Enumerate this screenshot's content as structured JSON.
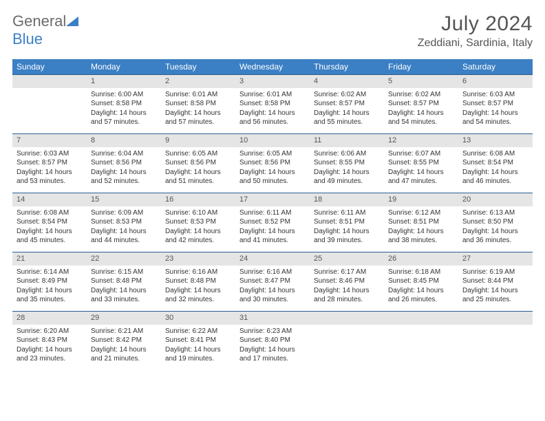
{
  "logo": {
    "line1": "General",
    "line2": "Blue",
    "icon_color": "#3b7fc4"
  },
  "title": "July 2024",
  "location": "Zeddiani, Sardinia, Italy",
  "colors": {
    "header_bg": "#3b7fc4",
    "header_text": "#ffffff",
    "daynum_bg": "#e5e5e5",
    "daynum_border": "#2b5d90",
    "body_text": "#333333"
  },
  "weekdays": [
    "Sunday",
    "Monday",
    "Tuesday",
    "Wednesday",
    "Thursday",
    "Friday",
    "Saturday"
  ],
  "weeks": [
    [
      {
        "n": "",
        "sunrise": "",
        "sunset": "",
        "daylight": ""
      },
      {
        "n": "1",
        "sunrise": "Sunrise: 6:00 AM",
        "sunset": "Sunset: 8:58 PM",
        "daylight": "Daylight: 14 hours and 57 minutes."
      },
      {
        "n": "2",
        "sunrise": "Sunrise: 6:01 AM",
        "sunset": "Sunset: 8:58 PM",
        "daylight": "Daylight: 14 hours and 57 minutes."
      },
      {
        "n": "3",
        "sunrise": "Sunrise: 6:01 AM",
        "sunset": "Sunset: 8:58 PM",
        "daylight": "Daylight: 14 hours and 56 minutes."
      },
      {
        "n": "4",
        "sunrise": "Sunrise: 6:02 AM",
        "sunset": "Sunset: 8:57 PM",
        "daylight": "Daylight: 14 hours and 55 minutes."
      },
      {
        "n": "5",
        "sunrise": "Sunrise: 6:02 AM",
        "sunset": "Sunset: 8:57 PM",
        "daylight": "Daylight: 14 hours and 54 minutes."
      },
      {
        "n": "6",
        "sunrise": "Sunrise: 6:03 AM",
        "sunset": "Sunset: 8:57 PM",
        "daylight": "Daylight: 14 hours and 54 minutes."
      }
    ],
    [
      {
        "n": "7",
        "sunrise": "Sunrise: 6:03 AM",
        "sunset": "Sunset: 8:57 PM",
        "daylight": "Daylight: 14 hours and 53 minutes."
      },
      {
        "n": "8",
        "sunrise": "Sunrise: 6:04 AM",
        "sunset": "Sunset: 8:56 PM",
        "daylight": "Daylight: 14 hours and 52 minutes."
      },
      {
        "n": "9",
        "sunrise": "Sunrise: 6:05 AM",
        "sunset": "Sunset: 8:56 PM",
        "daylight": "Daylight: 14 hours and 51 minutes."
      },
      {
        "n": "10",
        "sunrise": "Sunrise: 6:05 AM",
        "sunset": "Sunset: 8:56 PM",
        "daylight": "Daylight: 14 hours and 50 minutes."
      },
      {
        "n": "11",
        "sunrise": "Sunrise: 6:06 AM",
        "sunset": "Sunset: 8:55 PM",
        "daylight": "Daylight: 14 hours and 49 minutes."
      },
      {
        "n": "12",
        "sunrise": "Sunrise: 6:07 AM",
        "sunset": "Sunset: 8:55 PM",
        "daylight": "Daylight: 14 hours and 47 minutes."
      },
      {
        "n": "13",
        "sunrise": "Sunrise: 6:08 AM",
        "sunset": "Sunset: 8:54 PM",
        "daylight": "Daylight: 14 hours and 46 minutes."
      }
    ],
    [
      {
        "n": "14",
        "sunrise": "Sunrise: 6:08 AM",
        "sunset": "Sunset: 8:54 PM",
        "daylight": "Daylight: 14 hours and 45 minutes."
      },
      {
        "n": "15",
        "sunrise": "Sunrise: 6:09 AM",
        "sunset": "Sunset: 8:53 PM",
        "daylight": "Daylight: 14 hours and 44 minutes."
      },
      {
        "n": "16",
        "sunrise": "Sunrise: 6:10 AM",
        "sunset": "Sunset: 8:53 PM",
        "daylight": "Daylight: 14 hours and 42 minutes."
      },
      {
        "n": "17",
        "sunrise": "Sunrise: 6:11 AM",
        "sunset": "Sunset: 8:52 PM",
        "daylight": "Daylight: 14 hours and 41 minutes."
      },
      {
        "n": "18",
        "sunrise": "Sunrise: 6:11 AM",
        "sunset": "Sunset: 8:51 PM",
        "daylight": "Daylight: 14 hours and 39 minutes."
      },
      {
        "n": "19",
        "sunrise": "Sunrise: 6:12 AM",
        "sunset": "Sunset: 8:51 PM",
        "daylight": "Daylight: 14 hours and 38 minutes."
      },
      {
        "n": "20",
        "sunrise": "Sunrise: 6:13 AM",
        "sunset": "Sunset: 8:50 PM",
        "daylight": "Daylight: 14 hours and 36 minutes."
      }
    ],
    [
      {
        "n": "21",
        "sunrise": "Sunrise: 6:14 AM",
        "sunset": "Sunset: 8:49 PM",
        "daylight": "Daylight: 14 hours and 35 minutes."
      },
      {
        "n": "22",
        "sunrise": "Sunrise: 6:15 AM",
        "sunset": "Sunset: 8:48 PM",
        "daylight": "Daylight: 14 hours and 33 minutes."
      },
      {
        "n": "23",
        "sunrise": "Sunrise: 6:16 AM",
        "sunset": "Sunset: 8:48 PM",
        "daylight": "Daylight: 14 hours and 32 minutes."
      },
      {
        "n": "24",
        "sunrise": "Sunrise: 6:16 AM",
        "sunset": "Sunset: 8:47 PM",
        "daylight": "Daylight: 14 hours and 30 minutes."
      },
      {
        "n": "25",
        "sunrise": "Sunrise: 6:17 AM",
        "sunset": "Sunset: 8:46 PM",
        "daylight": "Daylight: 14 hours and 28 minutes."
      },
      {
        "n": "26",
        "sunrise": "Sunrise: 6:18 AM",
        "sunset": "Sunset: 8:45 PM",
        "daylight": "Daylight: 14 hours and 26 minutes."
      },
      {
        "n": "27",
        "sunrise": "Sunrise: 6:19 AM",
        "sunset": "Sunset: 8:44 PM",
        "daylight": "Daylight: 14 hours and 25 minutes."
      }
    ],
    [
      {
        "n": "28",
        "sunrise": "Sunrise: 6:20 AM",
        "sunset": "Sunset: 8:43 PM",
        "daylight": "Daylight: 14 hours and 23 minutes."
      },
      {
        "n": "29",
        "sunrise": "Sunrise: 6:21 AM",
        "sunset": "Sunset: 8:42 PM",
        "daylight": "Daylight: 14 hours and 21 minutes."
      },
      {
        "n": "30",
        "sunrise": "Sunrise: 6:22 AM",
        "sunset": "Sunset: 8:41 PM",
        "daylight": "Daylight: 14 hours and 19 minutes."
      },
      {
        "n": "31",
        "sunrise": "Sunrise: 6:23 AM",
        "sunset": "Sunset: 8:40 PM",
        "daylight": "Daylight: 14 hours and 17 minutes."
      },
      {
        "n": "",
        "sunrise": "",
        "sunset": "",
        "daylight": ""
      },
      {
        "n": "",
        "sunrise": "",
        "sunset": "",
        "daylight": ""
      },
      {
        "n": "",
        "sunrise": "",
        "sunset": "",
        "daylight": ""
      }
    ]
  ]
}
